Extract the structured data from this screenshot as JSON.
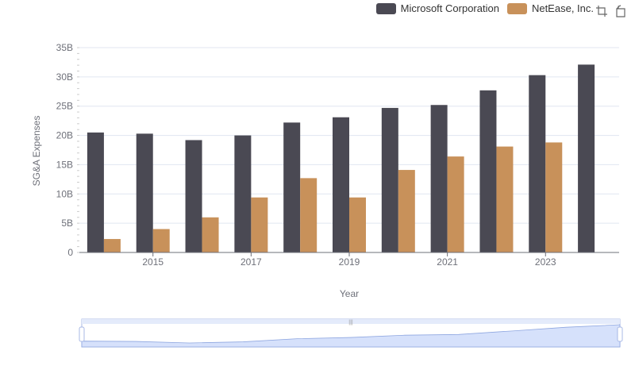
{
  "colors": {
    "microsoft": "#4a4953",
    "netease": "#c8915a",
    "grid": "#e0e6f1",
    "axis": "#6e7079",
    "zoom_fill": "#d6e1fb",
    "zoom_border": "#a8b9e6"
  },
  "legend": {
    "items": [
      {
        "label": "Microsoft Corporation",
        "color": "#4a4953"
      },
      {
        "label": "NetEase, Inc.",
        "color": "#c8915a"
      }
    ]
  },
  "toolbox": {
    "icons": [
      "zoom-icon",
      "restore-icon"
    ]
  },
  "chart_data": {
    "type": "bar",
    "categories": [
      "2014",
      "2015",
      "2016",
      "2017",
      "2018",
      "2019",
      "2020",
      "2021",
      "2022",
      "2023",
      "2024"
    ],
    "x_tick_labels": [
      "2015",
      "2017",
      "2019",
      "2021",
      "2023"
    ],
    "series": [
      {
        "name": "Microsoft Corporation",
        "values": [
          20.5,
          20.3,
          19.2,
          20.0,
          22.2,
          23.1,
          24.7,
          25.2,
          27.7,
          30.3,
          32.1
        ],
        "color": "#4a4953"
      },
      {
        "name": "NetEase, Inc.",
        "values": [
          2.3,
          4.0,
          6.0,
          9.4,
          12.7,
          9.4,
          14.1,
          16.4,
          18.1,
          18.8,
          null
        ],
        "color": "#c8915a"
      }
    ],
    "xlabel": "Year",
    "ylabel": "SG&A Expenses",
    "y_ticks": [
      "0",
      "5B",
      "10B",
      "15B",
      "20B",
      "25B",
      "30B",
      "35B"
    ],
    "ylim": [
      0,
      35
    ],
    "grid": true,
    "legend_position": "top-right"
  }
}
